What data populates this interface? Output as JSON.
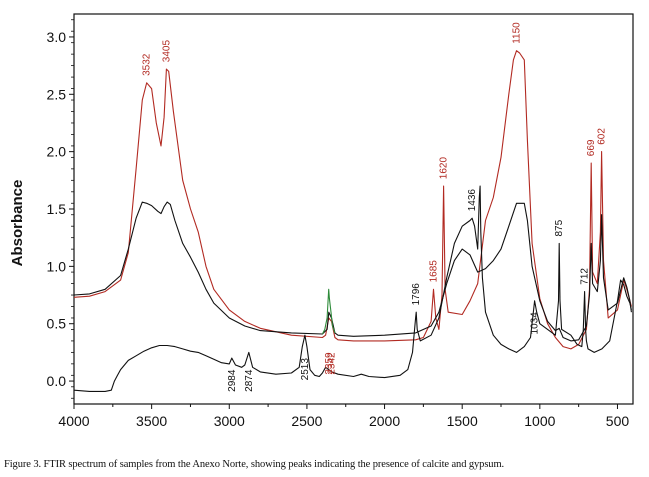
{
  "caption": "Figure 3. FTIR spectrum of samples from the Anexo Norte, showing peaks indicating the presence of calcite and gypsum.",
  "colors": {
    "red_series": "#b22a22",
    "black_series": "#111111",
    "green_series": "#2e8b3a",
    "axis": "#111111"
  },
  "chart_data": {
    "type": "line",
    "title": "",
    "xlabel": "",
    "ylabel": "Absorbance",
    "xlim": [
      4000,
      400
    ],
    "ylim": [
      -0.2,
      3.2
    ],
    "x_ticks": [
      4000,
      3500,
      3000,
      2500,
      2000,
      1500,
      1000,
      500
    ],
    "y_ticks": [
      0.0,
      0.5,
      1.0,
      1.5,
      2.0,
      2.5,
      3.0
    ],
    "grid": false,
    "legend": "none",
    "series": [
      {
        "color": "#b22a22",
        "points": [
          [
            4000,
            0.73
          ],
          [
            3900,
            0.74
          ],
          [
            3800,
            0.78
          ],
          [
            3700,
            0.88
          ],
          [
            3650,
            1.12
          ],
          [
            3600,
            1.85
          ],
          [
            3560,
            2.45
          ],
          [
            3532,
            2.6
          ],
          [
            3500,
            2.55
          ],
          [
            3470,
            2.25
          ],
          [
            3440,
            2.05
          ],
          [
            3420,
            2.3
          ],
          [
            3405,
            2.72
          ],
          [
            3390,
            2.7
          ],
          [
            3360,
            2.35
          ],
          [
            3300,
            1.75
          ],
          [
            3250,
            1.5
          ],
          [
            3200,
            1.3
          ],
          [
            3150,
            1.0
          ],
          [
            3100,
            0.8
          ],
          [
            3000,
            0.62
          ],
          [
            2900,
            0.52
          ],
          [
            2800,
            0.46
          ],
          [
            2600,
            0.4
          ],
          [
            2400,
            0.38
          ],
          [
            2380,
            0.4
          ],
          [
            2359,
            0.55
          ],
          [
            2342,
            0.52
          ],
          [
            2320,
            0.38
          ],
          [
            2300,
            0.36
          ],
          [
            2200,
            0.35
          ],
          [
            2000,
            0.35
          ],
          [
            1800,
            0.36
          ],
          [
            1750,
            0.38
          ],
          [
            1700,
            0.52
          ],
          [
            1685,
            0.8
          ],
          [
            1670,
            0.55
          ],
          [
            1650,
            0.45
          ],
          [
            1630,
            0.75
          ],
          [
            1620,
            1.7
          ],
          [
            1610,
            0.8
          ],
          [
            1590,
            0.6
          ],
          [
            1500,
            0.58
          ],
          [
            1450,
            0.7
          ],
          [
            1400,
            0.85
          ],
          [
            1350,
            1.4
          ],
          [
            1300,
            1.6
          ],
          [
            1250,
            1.95
          ],
          [
            1200,
            2.5
          ],
          [
            1170,
            2.8
          ],
          [
            1150,
            2.88
          ],
          [
            1130,
            2.86
          ],
          [
            1100,
            2.8
          ],
          [
            1080,
            2.1
          ],
          [
            1050,
            1.2
          ],
          [
            1000,
            0.72
          ],
          [
            950,
            0.5
          ],
          [
            900,
            0.38
          ],
          [
            850,
            0.3
          ],
          [
            800,
            0.28
          ],
          [
            750,
            0.32
          ],
          [
            700,
            0.45
          ],
          [
            680,
            0.8
          ],
          [
            669,
            1.9
          ],
          [
            660,
            0.95
          ],
          [
            630,
            0.85
          ],
          [
            610,
            1.3
          ],
          [
            602,
            2.0
          ],
          [
            590,
            1.05
          ],
          [
            560,
            0.55
          ],
          [
            500,
            0.62
          ],
          [
            460,
            0.88
          ],
          [
            440,
            0.8
          ],
          [
            420,
            0.7
          ],
          [
            410,
            0.65
          ]
        ]
      },
      {
        "color": "#111111",
        "points": [
          [
            4000,
            0.75
          ],
          [
            3900,
            0.76
          ],
          [
            3800,
            0.8
          ],
          [
            3700,
            0.92
          ],
          [
            3650,
            1.15
          ],
          [
            3600,
            1.42
          ],
          [
            3560,
            1.56
          ],
          [
            3532,
            1.55
          ],
          [
            3500,
            1.53
          ],
          [
            3460,
            1.48
          ],
          [
            3440,
            1.46
          ],
          [
            3420,
            1.52
          ],
          [
            3400,
            1.56
          ],
          [
            3380,
            1.54
          ],
          [
            3350,
            1.4
          ],
          [
            3300,
            1.2
          ],
          [
            3250,
            1.08
          ],
          [
            3200,
            0.95
          ],
          [
            3150,
            0.8
          ],
          [
            3100,
            0.68
          ],
          [
            3000,
            0.55
          ],
          [
            2900,
            0.48
          ],
          [
            2800,
            0.44
          ],
          [
            2600,
            0.42
          ],
          [
            2400,
            0.41
          ],
          [
            2370,
            0.45
          ],
          [
            2359,
            0.6
          ],
          [
            2342,
            0.55
          ],
          [
            2320,
            0.42
          ],
          [
            2300,
            0.4
          ],
          [
            2200,
            0.39
          ],
          [
            2000,
            0.4
          ],
          [
            1800,
            0.42
          ],
          [
            1700,
            0.48
          ],
          [
            1650,
            0.6
          ],
          [
            1600,
            0.85
          ],
          [
            1550,
            1.05
          ],
          [
            1500,
            1.15
          ],
          [
            1450,
            1.1
          ],
          [
            1400,
            0.95
          ],
          [
            1350,
            0.98
          ],
          [
            1300,
            1.05
          ],
          [
            1250,
            1.15
          ],
          [
            1200,
            1.35
          ],
          [
            1150,
            1.55
          ],
          [
            1100,
            1.55
          ],
          [
            1080,
            1.4
          ],
          [
            1050,
            1.0
          ],
          [
            1000,
            0.7
          ],
          [
            950,
            0.52
          ],
          [
            900,
            0.44
          ],
          [
            875,
            0.46
          ],
          [
            850,
            0.38
          ],
          [
            800,
            0.35
          ],
          [
            750,
            0.36
          ],
          [
            700,
            0.48
          ],
          [
            680,
            0.75
          ],
          [
            669,
            1.2
          ],
          [
            660,
            0.85
          ],
          [
            630,
            0.78
          ],
          [
            610,
            1.05
          ],
          [
            602,
            1.45
          ],
          [
            590,
            0.9
          ],
          [
            560,
            0.62
          ],
          [
            500,
            0.68
          ],
          [
            460,
            0.9
          ],
          [
            440,
            0.82
          ],
          [
            420,
            0.7
          ],
          [
            410,
            0.6
          ]
        ]
      },
      {
        "color": "#111111",
        "points": [
          [
            4000,
            -0.08
          ],
          [
            3900,
            -0.09
          ],
          [
            3800,
            -0.09
          ],
          [
            3760,
            -0.08
          ],
          [
            3740,
            0.0
          ],
          [
            3720,
            0.05
          ],
          [
            3700,
            0.1
          ],
          [
            3650,
            0.18
          ],
          [
            3600,
            0.22
          ],
          [
            3550,
            0.26
          ],
          [
            3500,
            0.29
          ],
          [
            3450,
            0.31
          ],
          [
            3400,
            0.31
          ],
          [
            3350,
            0.3
          ],
          [
            3300,
            0.28
          ],
          [
            3250,
            0.26
          ],
          [
            3200,
            0.25
          ],
          [
            3150,
            0.22
          ],
          [
            3100,
            0.19
          ],
          [
            3050,
            0.16
          ],
          [
            3000,
            0.15
          ],
          [
            2984,
            0.2
          ],
          [
            2960,
            0.14
          ],
          [
            2920,
            0.12
          ],
          [
            2900,
            0.14
          ],
          [
            2874,
            0.25
          ],
          [
            2850,
            0.12
          ],
          [
            2800,
            0.08
          ],
          [
            2700,
            0.06
          ],
          [
            2600,
            0.07
          ],
          [
            2550,
            0.12
          ],
          [
            2530,
            0.3
          ],
          [
            2513,
            0.4
          ],
          [
            2500,
            0.3
          ],
          [
            2480,
            0.1
          ],
          [
            2450,
            0.05
          ],
          [
            2420,
            0.04
          ],
          [
            2400,
            0.07
          ],
          [
            2380,
            0.12
          ],
          [
            2360,
            0.1
          ],
          [
            2340,
            0.08
          ],
          [
            2300,
            0.06
          ],
          [
            2200,
            0.04
          ],
          [
            2150,
            0.06
          ],
          [
            2100,
            0.04
          ],
          [
            2000,
            0.03
          ],
          [
            1900,
            0.05
          ],
          [
            1850,
            0.1
          ],
          [
            1820,
            0.25
          ],
          [
            1800,
            0.55
          ],
          [
            1796,
            0.6
          ],
          [
            1790,
            0.45
          ],
          [
            1770,
            0.35
          ],
          [
            1700,
            0.4
          ],
          [
            1650,
            0.55
          ],
          [
            1600,
            0.9
          ],
          [
            1550,
            1.2
          ],
          [
            1500,
            1.35
          ],
          [
            1450,
            1.4
          ],
          [
            1436,
            1.42
          ],
          [
            1420,
            1.35
          ],
          [
            1400,
            1.15
          ],
          [
            1390,
            1.6
          ],
          [
            1385,
            1.7
          ],
          [
            1380,
            1.3
          ],
          [
            1370,
            0.9
          ],
          [
            1350,
            0.6
          ],
          [
            1300,
            0.4
          ],
          [
            1250,
            0.32
          ],
          [
            1200,
            0.28
          ],
          [
            1150,
            0.25
          ],
          [
            1100,
            0.3
          ],
          [
            1060,
            0.38
          ],
          [
            1040,
            0.62
          ],
          [
            1034,
            0.7
          ],
          [
            1020,
            0.6
          ],
          [
            1000,
            0.5
          ],
          [
            950,
            0.45
          ],
          [
            900,
            0.4
          ],
          [
            880,
            0.7
          ],
          [
            875,
            1.2
          ],
          [
            870,
            0.7
          ],
          [
            860,
            0.45
          ],
          [
            800,
            0.4
          ],
          [
            760,
            0.32
          ],
          [
            730,
            0.3
          ],
          [
            720,
            0.45
          ],
          [
            712,
            0.78
          ],
          [
            705,
            0.45
          ],
          [
            700,
            0.35
          ],
          [
            690,
            0.28
          ],
          [
            650,
            0.25
          ],
          [
            600,
            0.28
          ],
          [
            550,
            0.35
          ],
          [
            500,
            0.7
          ],
          [
            480,
            0.88
          ],
          [
            460,
            0.84
          ],
          [
            440,
            0.74
          ],
          [
            420,
            0.68
          ],
          [
            410,
            0.62
          ]
        ]
      },
      {
        "color": "#2e8b3a",
        "points": [
          [
            2400,
            0.41
          ],
          [
            2385,
            0.45
          ],
          [
            2370,
            0.55
          ],
          [
            2360,
            0.8
          ],
          [
            2355,
            0.72
          ],
          [
            2345,
            0.6
          ],
          [
            2335,
            0.48
          ],
          [
            2320,
            0.42
          ]
        ]
      }
    ],
    "annotations": [
      {
        "text": "3532",
        "x": 3532,
        "y": 2.66,
        "color": "#b22a22",
        "rotate": true
      },
      {
        "text": "3405",
        "x": 3405,
        "y": 2.78,
        "color": "#b22a22",
        "rotate": true
      },
      {
        "text": "1150",
        "x": 1150,
        "y": 2.94,
        "color": "#b22a22",
        "rotate": true
      },
      {
        "text": "1620",
        "x": 1620,
        "y": 1.76,
        "color": "#b22a22",
        "rotate": true
      },
      {
        "text": "1685",
        "x": 1685,
        "y": 0.86,
        "color": "#b22a22",
        "rotate": true
      },
      {
        "text": "669",
        "x": 669,
        "y": 1.96,
        "color": "#b22a22",
        "rotate": true
      },
      {
        "text": "602",
        "x": 602,
        "y": 2.06,
        "color": "#b22a22",
        "rotate": true
      },
      {
        "text": "2359",
        "x": 2359,
        "y": 0.25,
        "color": "#b22a22",
        "rotate": true,
        "below": true
      },
      {
        "text": "2342",
        "x": 2342,
        "y": 0.25,
        "color": "#b22a22",
        "rotate": true,
        "below": true
      },
      {
        "text": "1436",
        "x": 1436,
        "y": 1.48,
        "color": "#111111",
        "rotate": true
      },
      {
        "text": "1796",
        "x": 1796,
        "y": 0.66,
        "color": "#111111",
        "rotate": true
      },
      {
        "text": "875",
        "x": 875,
        "y": 1.26,
        "color": "#111111",
        "rotate": true
      },
      {
        "text": "712",
        "x": 712,
        "y": 0.84,
        "color": "#111111",
        "rotate": true
      },
      {
        "text": "1034",
        "x": 1034,
        "y": 0.6,
        "color": "#111111",
        "rotate": true,
        "below": true
      },
      {
        "text": "2984",
        "x": 2984,
        "y": 0.1,
        "color": "#111111",
        "rotate": true,
        "below": true
      },
      {
        "text": "2874",
        "x": 2874,
        "y": 0.1,
        "color": "#111111",
        "rotate": true,
        "below": true
      },
      {
        "text": "2513",
        "x": 2513,
        "y": 0.2,
        "color": "#111111",
        "rotate": true,
        "below": true
      }
    ]
  }
}
